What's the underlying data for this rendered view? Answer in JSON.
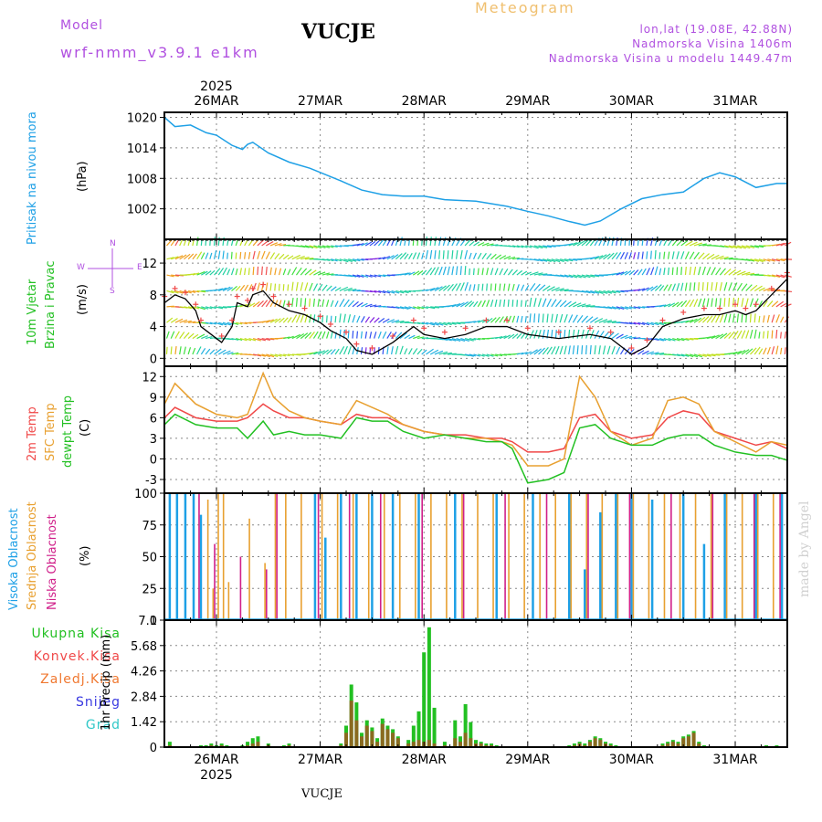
{
  "header": {
    "model_label": "Model",
    "model_name": "wrf-nmm_v3.9.1 e1km",
    "station": "VUCJE",
    "meteogram": "Meteogram",
    "lonlat": "lon,lat (19.08E, 42.88N)",
    "altitude": "Nadmorska Visina 1406m",
    "model_altitude": "Nadmorska Visina u modelu 1449.47m",
    "footer_station": "VUCJE",
    "credit": "made by Angel"
  },
  "colors": {
    "pressure": "#1ea0e6",
    "wind_label": "#22c022",
    "temp2m": "#f04848",
    "sfc_temp": "#e8a030",
    "dewpt": "#22c022",
    "cloud_high": "#1ea0e6",
    "cloud_mid": "#e8a030",
    "cloud_low": "#d0208a",
    "precip_total": "#22c022",
    "precip_conv": "#f04848",
    "freezing": "#f07830",
    "snow": "#3838e0",
    "hail": "#30c8c8",
    "header_purple": "#b050e0",
    "meteogram_orange": "#f0c070"
  },
  "chart_data": [
    {
      "type": "line",
      "panel": "pressure",
      "ylabel_lines": [
        "Pritisak na nivou mora",
        "(hPa)"
      ],
      "ylim": [
        996,
        1021
      ],
      "yticks": [
        "1002",
        "1008",
        "1014",
        "1020"
      ],
      "x_unit": "day offset from 26 MAR 2025 00Z",
      "x": [
        -0.5,
        -0.4,
        -0.25,
        -0.1,
        0.0,
        0.15,
        0.25,
        0.3,
        0.35,
        0.5,
        0.7,
        0.9,
        1.2,
        1.4,
        1.6,
        1.8,
        2.0,
        2.2,
        2.5,
        2.8,
        3.0,
        3.2,
        3.4,
        3.55,
        3.7,
        3.9,
        4.1,
        4.3,
        4.5,
        4.7,
        4.85,
        5.0,
        5.2,
        5.4,
        5.5
      ],
      "series": [
        {
          "values": [
            1020.0,
            1018.2,
            1018.5,
            1017.0,
            1016.5,
            1014.5,
            1013.7,
            1014.7,
            1015.1,
            1013.0,
            1011.2,
            1010.0,
            1007.5,
            1005.7,
            1004.8,
            1004.5,
            1004.5,
            1003.8,
            1003.5,
            1002.5,
            1001.5,
            1000.6,
            999.5,
            998.8,
            999.6,
            1002.0,
            1004.0,
            1004.8,
            1005.3,
            1008.0,
            1009.1,
            1008.3,
            1006.2,
            1007.0,
            1007.0
          ]
        }
      ]
    },
    {
      "type": "line",
      "panel": "wind",
      "ylabel_lines": [
        "10m Vjetar",
        "Brzina i Pravac",
        "(m/s)"
      ],
      "compass": [
        "W",
        "E",
        "N",
        "S"
      ],
      "ylim": [
        -1,
        15
      ],
      "yticks": [
        "0",
        "4",
        "8",
        "12"
      ],
      "x": [
        -0.5,
        -0.4,
        -0.3,
        -0.2,
        -0.15,
        0.05,
        0.15,
        0.2,
        0.3,
        0.35,
        0.45,
        0.55,
        0.7,
        0.85,
        1.0,
        1.1,
        1.25,
        1.35,
        1.5,
        1.7,
        1.9,
        2.0,
        2.2,
        2.4,
        2.6,
        2.8,
        3.0,
        3.3,
        3.6,
        3.8,
        4.0,
        4.15,
        4.3,
        4.5,
        4.7,
        4.85,
        5.0,
        5.1,
        5.2,
        5.35,
        5.5
      ],
      "series": [
        {
          "name_hidden": "speed",
          "values": [
            7,
            8,
            7.5,
            6,
            4,
            2,
            4,
            7,
            6.5,
            8,
            8.5,
            7,
            6,
            5.5,
            4.5,
            3.5,
            2.5,
            1,
            0.5,
            2,
            4,
            3,
            2.5,
            3,
            4,
            4,
            3,
            2.5,
            3,
            2.5,
            0.5,
            1.5,
            4,
            5,
            5.5,
            5.5,
            6,
            5.5,
            6,
            8,
            10
          ]
        }
      ]
    },
    {
      "type": "line",
      "panel": "temperature",
      "ylabel_lines": [
        "2m Temp",
        "SFC Temp",
        "dewpt Temp",
        "(C)"
      ],
      "ylim": [
        -5,
        13.5
      ],
      "yticks": [
        "-3",
        "0",
        "3",
        "6",
        "9",
        "12"
      ],
      "x": [
        -0.5,
        -0.4,
        -0.2,
        0.0,
        0.2,
        0.3,
        0.45,
        0.55,
        0.7,
        0.85,
        1.0,
        1.2,
        1.35,
        1.5,
        1.65,
        1.8,
        2.0,
        2.2,
        2.4,
        2.6,
        2.75,
        2.85,
        3.0,
        3.2,
        3.35,
        3.5,
        3.65,
        3.8,
        4.0,
        4.2,
        4.35,
        4.5,
        4.65,
        4.8,
        5.0,
        5.2,
        5.35,
        5.5
      ],
      "series": [
        {
          "name": "2m Temp",
          "values": [
            6,
            7.5,
            6,
            5.5,
            5.5,
            6,
            8,
            7,
            6,
            6,
            5.5,
            5,
            6.5,
            6,
            6,
            5,
            4,
            3.5,
            3.5,
            3,
            3,
            2.5,
            1,
            1,
            1.5,
            6,
            6.5,
            4,
            3,
            3.5,
            6,
            7,
            6.5,
            4,
            3,
            2,
            2.5,
            1.5
          ]
        },
        {
          "name": "SFC Temp",
          "values": [
            8,
            11,
            8,
            6.5,
            6,
            6.5,
            12.5,
            9,
            7,
            6,
            5.5,
            5,
            8.5,
            7.5,
            6.5,
            5,
            4,
            3.5,
            3,
            3,
            2.5,
            2,
            -1,
            -1,
            0,
            12,
            9,
            4,
            2,
            3,
            8.5,
            9,
            8,
            4,
            2.5,
            1,
            2.5,
            2
          ]
        },
        {
          "name": "dewpt Temp",
          "values": [
            5,
            6.5,
            5,
            4.5,
            4.5,
            3,
            5.5,
            3.5,
            4,
            3.5,
            3.5,
            3,
            6,
            5.5,
            5.5,
            4,
            3,
            3.5,
            3,
            2.5,
            2.5,
            1.5,
            -3.5,
            -3,
            -2,
            4.5,
            5,
            3,
            2,
            2,
            3,
            3.5,
            3.5,
            2,
            1,
            0.5,
            0.5,
            -0.2
          ]
        }
      ]
    },
    {
      "type": "bar",
      "panel": "cloud_cover",
      "ylabel_lines": [
        "Visoka Oblacnost",
        "Srednja Oblacnost",
        "Niska Oblacnost",
        "(%)"
      ],
      "ylim": [
        0,
        100
      ],
      "yticks": [
        "0",
        "25",
        "50",
        "75",
        "100"
      ],
      "series": [
        {
          "name": "Visoka Oblacnost",
          "x": [
            -0.45,
            -0.38,
            -0.3,
            -0.22,
            -0.15,
            -0.1,
            0.95,
            1.05,
            1.2,
            1.35,
            1.5,
            1.7,
            1.95,
            2.3,
            2.7,
            3.05,
            3.4,
            3.55,
            3.7,
            3.85,
            4.0,
            4.2,
            4.5,
            4.7,
            4.9,
            5.2,
            5.45
          ],
          "values": [
            100,
            100,
            100,
            100,
            83,
            0,
            100,
            65,
            100,
            100,
            100,
            100,
            100,
            100,
            100,
            100,
            100,
            40,
            85,
            100,
            100,
            95,
            100,
            60,
            100,
            100,
            100
          ]
        },
        {
          "name": "Srednja Oblacnost",
          "x": [
            -0.1,
            -0.05,
            0.0,
            0.05,
            0.1,
            0.3,
            0.45,
            0.55,
            0.65,
            0.8,
            1.0,
            1.15,
            1.3,
            1.45,
            1.6,
            1.75,
            1.9,
            2.05,
            2.2,
            2.35,
            2.5,
            2.65,
            2.8,
            2.95,
            3.1,
            3.25,
            3.4,
            3.55,
            3.7,
            3.85,
            4.0,
            4.15,
            4.3,
            4.45,
            4.6,
            4.75,
            4.9,
            5.05,
            5.2,
            5.35,
            5.5
          ],
          "values": [
            95,
            25,
            100,
            100,
            30,
            80,
            45,
            100,
            100,
            100,
            100,
            100,
            100,
            100,
            100,
            100,
            100,
            100,
            100,
            100,
            100,
            100,
            100,
            100,
            100,
            100,
            100,
            100,
            100,
            100,
            100,
            100,
            100,
            100,
            100,
            100,
            100,
            100,
            100,
            100,
            100
          ]
        },
        {
          "name": "Niska Oblacnost",
          "x": [
            -0.15,
            0.0,
            0.25,
            0.5,
            0.6,
            1.0,
            1.3,
            1.6,
            2.0,
            2.4,
            2.8,
            3.2,
            3.6,
            4.0,
            4.4,
            4.8,
            5.2,
            5.45
          ],
          "values": [
            100,
            60,
            50,
            40,
            100,
            100,
            100,
            100,
            100,
            100,
            100,
            100,
            100,
            100,
            100,
            100,
            100,
            100
          ]
        }
      ]
    },
    {
      "type": "bar",
      "panel": "precipitation",
      "ylabel_lines": [
        "1hr Precip (mm)"
      ],
      "legend_lines": [
        "Ukupna Kisa",
        "Konvek.Kisa",
        "Zaledj.Kisa",
        "Snijeg",
        "Grad"
      ],
      "ylim": [
        0,
        7.1
      ],
      "yticks": [
        "0",
        "1.42",
        "2.84",
        "4.26",
        "5.68",
        "7.1"
      ],
      "x": [
        -0.45,
        -0.15,
        -0.1,
        -0.05,
        0.0,
        0.05,
        0.1,
        0.25,
        0.3,
        0.35,
        0.4,
        0.5,
        0.65,
        0.7,
        1.2,
        1.25,
        1.3,
        1.35,
        1.4,
        1.45,
        1.5,
        1.55,
        1.6,
        1.65,
        1.7,
        1.75,
        1.85,
        1.9,
        1.95,
        2.0,
        2.05,
        2.1,
        2.2,
        2.3,
        2.35,
        2.4,
        2.45,
        2.5,
        2.55,
        2.6,
        2.65,
        2.7,
        3.4,
        3.45,
        3.5,
        3.55,
        3.6,
        3.65,
        3.7,
        3.75,
        3.8,
        3.85,
        4.3,
        4.35,
        4.4,
        4.45,
        4.5,
        4.55,
        4.6,
        4.65,
        4.7,
        5.3,
        5.4
      ],
      "series": [
        {
          "name": "Ukupna Kisa",
          "values": [
            0.3,
            0.1,
            0.1,
            0.2,
            0.1,
            0.2,
            0.1,
            0.1,
            0.3,
            0.5,
            0.6,
            0.2,
            0.1,
            0.2,
            0.2,
            1.2,
            3.5,
            2.5,
            0.8,
            1.5,
            1.1,
            0.5,
            1.6,
            1.2,
            1.0,
            0.6,
            0.4,
            1.2,
            2.0,
            5.3,
            6.7,
            2.2,
            0.3,
            1.5,
            0.6,
            2.4,
            1.4,
            0.4,
            0.3,
            0.2,
            0.2,
            0.1,
            0.1,
            0.2,
            0.3,
            0.2,
            0.4,
            0.6,
            0.5,
            0.3,
            0.2,
            0.1,
            0.2,
            0.3,
            0.4,
            0.3,
            0.6,
            0.7,
            0.9,
            0.3,
            0.1,
            0.1,
            0.1
          ]
        },
        {
          "name": "Konvek.Kisa",
          "values": [
            0.1,
            0.05,
            0.05,
            0.1,
            0.05,
            0.1,
            0.05,
            0.05,
            0.1,
            0.2,
            0.3,
            0.1,
            0.05,
            0.1,
            0.1,
            0.8,
            2.6,
            1.5,
            0.6,
            1.2,
            0.9,
            0.3,
            1.3,
            1.0,
            0.8,
            0.5,
            0.2,
            0.3,
            0.4,
            0.3,
            0.4,
            0.2,
            0.1,
            0.5,
            0.3,
            0.8,
            0.5,
            0.2,
            0.2,
            0.1,
            0.1,
            0.05,
            0.05,
            0.1,
            0.2,
            0.1,
            0.3,
            0.5,
            0.4,
            0.2,
            0.1,
            0.05,
            0.1,
            0.2,
            0.3,
            0.2,
            0.5,
            0.6,
            0.8,
            0.2,
            0.05,
            0.05,
            0.05
          ]
        }
      ]
    },
    {
      "type": "axis",
      "panel": "time_axis",
      "year": "2025",
      "categories": [
        "26MAR",
        "27MAR",
        "28MAR",
        "29MAR",
        "30MAR",
        "31MAR"
      ]
    }
  ]
}
